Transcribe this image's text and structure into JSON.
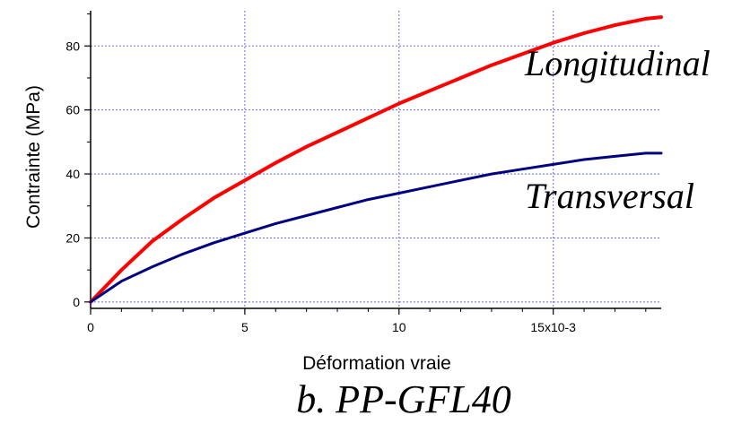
{
  "chart_data": {
    "type": "line",
    "xlabel": "Déformation vraie",
    "ylabel": "Contrainte (MPa)",
    "caption": "b. PP-GFL40",
    "xlim": [
      0,
      0.0185
    ],
    "ylim": [
      -2,
      91
    ],
    "x_ticks": [
      {
        "value": 0,
        "label": "0"
      },
      {
        "value": 0.005,
        "label": "5"
      },
      {
        "value": 0.01,
        "label": "10"
      },
      {
        "value": 0.015,
        "label": "15x10-3"
      }
    ],
    "y_ticks": [
      {
        "value": 0,
        "label": "0"
      },
      {
        "value": 20,
        "label": "20"
      },
      {
        "value": 40,
        "label": "40"
      },
      {
        "value": 60,
        "label": "60"
      },
      {
        "value": 80,
        "label": "80"
      }
    ],
    "grid": true,
    "series": [
      {
        "name": "Longitudinal",
        "color": "#ff0000",
        "x": [
          0,
          0.001,
          0.002,
          0.003,
          0.004,
          0.005,
          0.006,
          0.007,
          0.008,
          0.009,
          0.01,
          0.011,
          0.012,
          0.013,
          0.014,
          0.015,
          0.016,
          0.017,
          0.018,
          0.0185
        ],
        "y": [
          0,
          10,
          19,
          26,
          32.5,
          38,
          43.5,
          48.5,
          53,
          57.5,
          62,
          66,
          70,
          74,
          77.5,
          81,
          84,
          86.5,
          88.5,
          89
        ]
      },
      {
        "name": "Transversal",
        "color": "#000080",
        "x": [
          0,
          0.001,
          0.002,
          0.003,
          0.004,
          0.005,
          0.006,
          0.007,
          0.008,
          0.009,
          0.01,
          0.011,
          0.012,
          0.013,
          0.014,
          0.015,
          0.016,
          0.017,
          0.018,
          0.0185
        ],
        "y": [
          0,
          6.5,
          11,
          15,
          18.5,
          21.5,
          24.5,
          27,
          29.5,
          32,
          34,
          36,
          38,
          40,
          41.5,
          43,
          44.5,
          45.5,
          46.5,
          46.5
        ]
      }
    ]
  }
}
